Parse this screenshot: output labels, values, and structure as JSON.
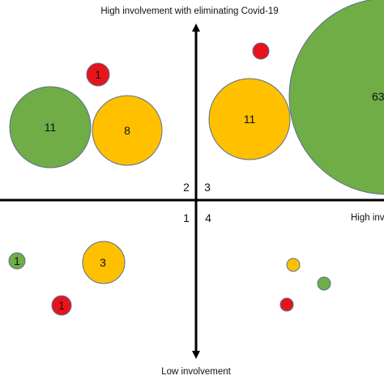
{
  "axes": {
    "top_label": "High involvement with eliminating Covid-19",
    "bottom_label": "Low involvement",
    "right_label": "High inv"
  },
  "quadrants": {
    "q1": "1",
    "q2": "2",
    "q3": "3",
    "q4": "4"
  },
  "colors": {
    "green": "#70ad47",
    "orange": "#ffc000",
    "red": "#e8141c",
    "axis": "#000000"
  },
  "bubbles": [
    {
      "label": "1",
      "color": "red"
    },
    {
      "label": "11",
      "color": "green"
    },
    {
      "label": "8",
      "color": "orange"
    },
    {
      "label": "",
      "color": "red"
    },
    {
      "label": "11",
      "color": "orange"
    },
    {
      "label": "63",
      "color": "green"
    },
    {
      "label": "1",
      "color": "green"
    },
    {
      "label": "3",
      "color": "orange"
    },
    {
      "label": "1",
      "color": "red"
    },
    {
      "label": "",
      "color": "orange"
    },
    {
      "label": "",
      "color": "green"
    },
    {
      "label": "",
      "color": "red"
    }
  ]
}
